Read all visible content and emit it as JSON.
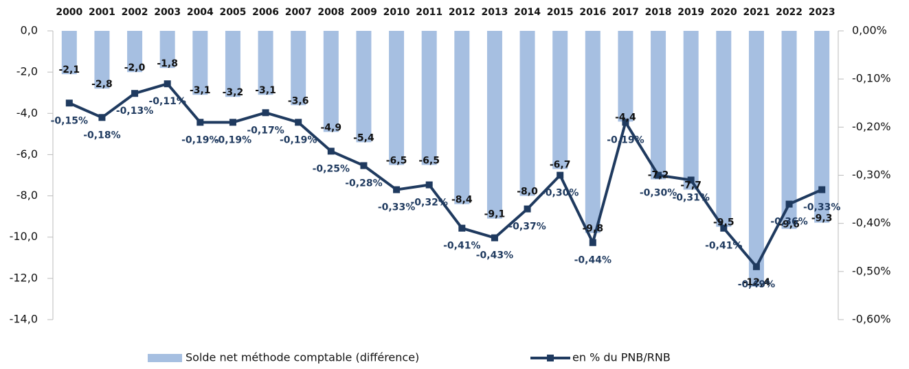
{
  "chart_data": {
    "type": "bar",
    "categories": [
      "2000",
      "2001",
      "2002",
      "2003",
      "2004",
      "2005",
      "2006",
      "2007",
      "2008",
      "2009",
      "2010",
      "2011",
      "2012",
      "2013",
      "2014",
      "2015",
      "2016",
      "2017",
      "2018",
      "2019",
      "2020",
      "2021",
      "2022",
      "2023"
    ],
    "series": [
      {
        "name": "Solde net méthode comptable (différence)",
        "type": "bar",
        "color": "#a6bfe1",
        "values": [
          -2.1,
          -2.8,
          -2.0,
          -1.8,
          -3.1,
          -3.2,
          -3.1,
          -3.6,
          -4.9,
          -5.4,
          -6.5,
          -6.5,
          -8.4,
          -9.1,
          -8.0,
          -6.7,
          -9.8,
          -4.4,
          -7.2,
          -7.7,
          -9.5,
          -12.4,
          -9.6,
          -9.3
        ],
        "value_labels": [
          "-2,1",
          "-2,8",
          "-2,0",
          "-1,8",
          "-3,1",
          "-3,2",
          "-3,1",
          "-3,6",
          "-4,9",
          "-5,4",
          "-6,5",
          "-6,5",
          "-8,4",
          "-9,1",
          "-8,0",
          "-6,7",
          "-9,8",
          "-4,4",
          "-7,2",
          "-7,7",
          "-9,5",
          "-12,4",
          "-9,6",
          "-9,3"
        ]
      },
      {
        "name": "en % du PNB/RNB",
        "type": "line",
        "axis": "y2",
        "color": "#1f3a5f",
        "values": [
          -0.15,
          -0.18,
          -0.13,
          -0.11,
          -0.19,
          -0.19,
          -0.17,
          -0.19,
          -0.25,
          -0.28,
          -0.33,
          -0.32,
          -0.41,
          -0.43,
          -0.37,
          -0.3,
          -0.44,
          -0.19,
          -0.3,
          -0.31,
          -0.41,
          -0.49,
          -0.36,
          -0.33
        ],
        "value_labels": [
          "-0,15%",
          "-0,18%",
          "-0,13%",
          "-0,11%",
          "-0,19%",
          "-0,19%",
          "-0,17%",
          "-0,19%",
          "-0,25%",
          "-0,28%",
          "-0,33%",
          "-0,32%",
          "-0,41%",
          "-0,43%",
          "-0,37%",
          "-0,30%",
          "-0,44%",
          "-0,19%",
          "-0,30%",
          "-0,31%",
          "-0,41%",
          "-0,49%",
          "-0,36%",
          "-0,33%"
        ]
      }
    ],
    "ylim": [
      -14,
      0
    ],
    "yticks": [
      {
        "value": 0,
        "label": "0,0"
      },
      {
        "value": -2,
        "label": "-2,0"
      },
      {
        "value": -4,
        "label": "-4,0"
      },
      {
        "value": -6,
        "label": "-6,0"
      },
      {
        "value": -8,
        "label": "-8,0"
      },
      {
        "value": -10,
        "label": "-10,0"
      },
      {
        "value": -12,
        "label": "-12,0"
      },
      {
        "value": -14,
        "label": "-14,0"
      }
    ],
    "y2lim": [
      -0.6,
      0
    ],
    "y2ticks": [
      {
        "value": 0,
        "label": "0,00%"
      },
      {
        "value": -0.1,
        "label": "-0,10%"
      },
      {
        "value": -0.2,
        "label": "-0,20%"
      },
      {
        "value": -0.3,
        "label": "-0,30%"
      },
      {
        "value": -0.4,
        "label": "-0,40%"
      },
      {
        "value": -0.5,
        "label": "-0,50%"
      },
      {
        "value": -0.6,
        "label": "-0,60%"
      }
    ]
  }
}
